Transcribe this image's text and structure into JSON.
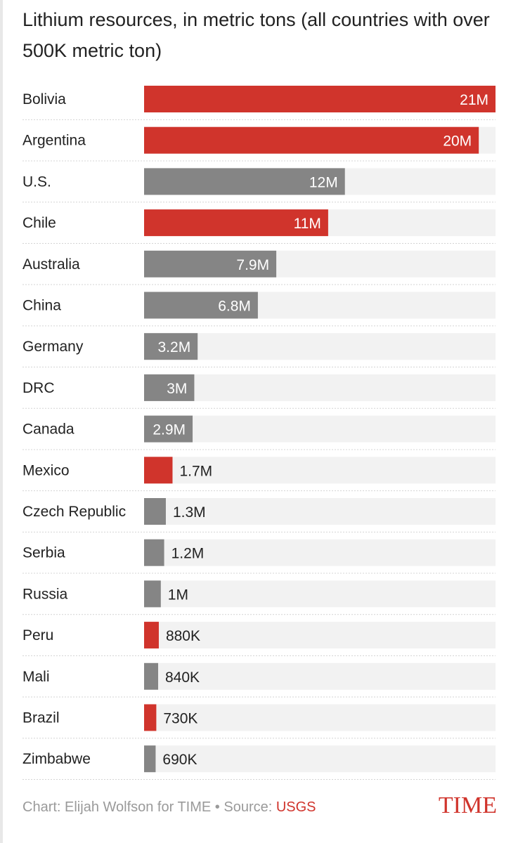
{
  "chart_data": {
    "type": "bar",
    "orientation": "horizontal",
    "title": "Lithium resources, in metric tons (all countries with over 500K metric ton)",
    "categories": [
      "Bolivia",
      "Argentina",
      "U.S.",
      "Chile",
      "Australia",
      "China",
      "Germany",
      "DRC",
      "Canada",
      "Mexico",
      "Czech Republic",
      "Serbia",
      "Russia",
      "Peru",
      "Mali",
      "Brazil",
      "Zimbabwe"
    ],
    "values": [
      21000000,
      20000000,
      12000000,
      11000000,
      7900000,
      6800000,
      3200000,
      3000000,
      2900000,
      1700000,
      1300000,
      1200000,
      1000000,
      880000,
      840000,
      730000,
      690000
    ],
    "labels": [
      "21M",
      "20M",
      "12M",
      "11M",
      "7.9M",
      "6.8M",
      "3.2M",
      "3M",
      "2.9M",
      "1.7M",
      "1.3M",
      "1.2M",
      "1M",
      "880K",
      "840K",
      "730K",
      "690K"
    ],
    "highlight": [
      true,
      true,
      false,
      true,
      false,
      false,
      false,
      false,
      false,
      true,
      false,
      false,
      false,
      true,
      false,
      true,
      false
    ],
    "xlim": [
      0,
      21000000
    ],
    "colors": {
      "highlight": "#d0342c",
      "default": "#858585",
      "track": "#f2f2f2",
      "label_inside": "#ffffff",
      "label_outside": "#222222"
    }
  },
  "footer": {
    "credit": "Chart: Elijah Wolfson for TIME • Source: ",
    "source": "USGS"
  },
  "brand": "TIME"
}
